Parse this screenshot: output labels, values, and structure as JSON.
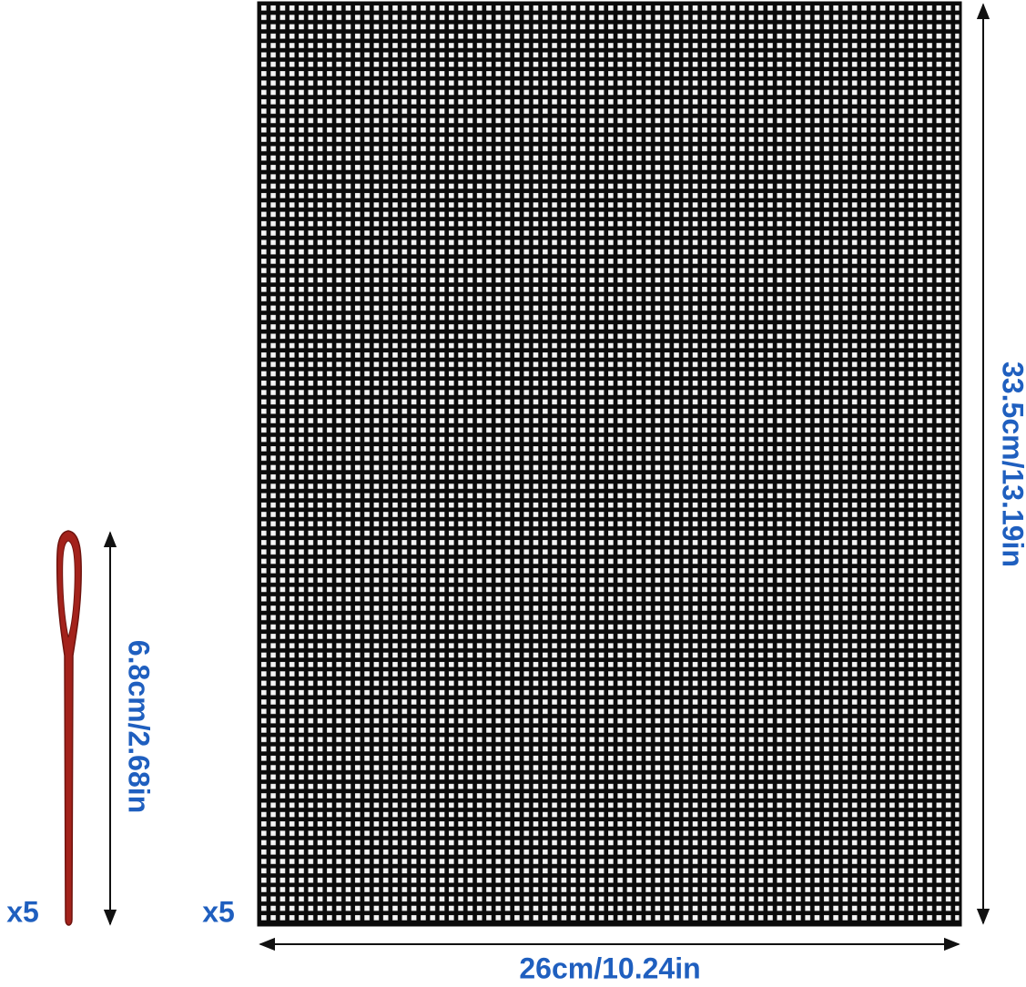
{
  "sheet": {
    "height_label": "33.5cm/13.19in",
    "width_label": "26cm/10.24in",
    "quantity": "x5"
  },
  "needle": {
    "length_label": "6.8cm/2.68in",
    "quantity": "x5"
  }
}
